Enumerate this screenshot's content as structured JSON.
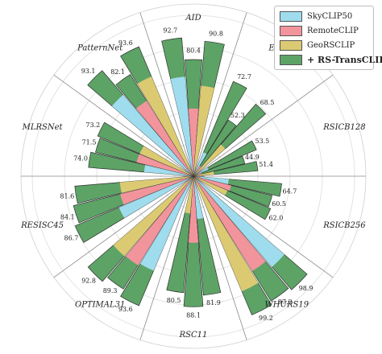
{
  "chart_data": {
    "type": "radial-bar",
    "title": "",
    "categories": [
      "AID",
      "EuroSAT",
      "RSICB128",
      "RSICB256",
      "WHURS19",
      "RSC11",
      "OPTIMAL31",
      "RESISC45",
      "MLRSNet",
      "PatternNet"
    ],
    "series": [
      {
        "name": "SkyCLIP50",
        "color": "#9fdced",
        "values": [
          null,
          null,
          null,
          null,
          null,
          null,
          null,
          null,
          null,
          null
        ]
      },
      {
        "name": "RemoteCLIP",
        "color": "#f2949c",
        "values": [
          null,
          null,
          null,
          null,
          null,
          null,
          null,
          null,
          null,
          null
        ]
      },
      {
        "name": "GeoRSCLIP",
        "color": "#dcca72",
        "values": [
          null,
          null,
          null,
          null,
          null,
          null,
          null,
          null,
          null,
          null
        ]
      },
      {
        "name": "+ RS-TransCLIP",
        "color": "#5da366",
        "values": [
          null,
          null,
          null,
          null,
          null,
          null,
          null,
          null,
          null,
          null
        ]
      }
    ],
    "improved_labels": [
      [
        "92.7",
        "80.4",
        "90.8"
      ],
      [
        "72.7",
        "52.3",
        "68.5"
      ],
      [
        "53.5",
        "44.9",
        "51.4"
      ],
      [
        "64.7",
        "60.5",
        "62.0"
      ],
      [
        "98.9",
        "97.2",
        "99.2"
      ],
      [
        "81.9",
        "88.1",
        "80.5"
      ],
      [
        "93.6",
        "89.3",
        "92.8"
      ],
      [
        "86.7",
        "84.1",
        "81.6"
      ],
      [
        "74.0",
        "71.5",
        "73.2"
      ],
      [
        "93.1",
        "82.1",
        "93.6"
      ]
    ],
    "grid": true,
    "legend_position": "top-right"
  },
  "legend": {
    "items": [
      {
        "label": "SkyCLIP50",
        "color": "#9fdced",
        "bold": false
      },
      {
        "label": "RemoteCLIP",
        "color": "#f2949c",
        "bold": false
      },
      {
        "label": "GeoRSCLIP",
        "color": "#dcca72",
        "bold": false
      },
      {
        "label": "+ RS-TransCLIP",
        "color": "#5da366",
        "bold": true
      }
    ]
  },
  "colors": {
    "grid": "#dcdcdc",
    "spoke": "#8a8a8a",
    "edge": "#2f2f2f"
  }
}
